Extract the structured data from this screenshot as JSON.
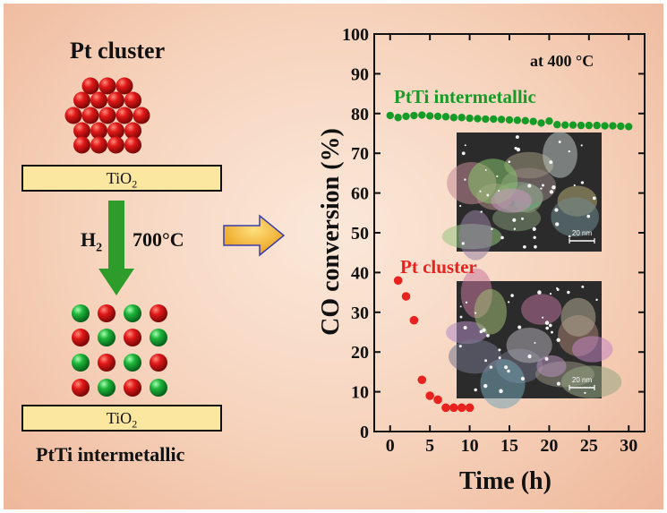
{
  "left_panel": {
    "title_top": "Pt cluster",
    "substrate_label": "TiO",
    "substrate_subscript": "2",
    "reaction_gas": "H",
    "reaction_gas_subscript": "2",
    "reaction_temperature": "700°C",
    "title_bottom": "PtTi intermetallic",
    "colors": {
      "pt_atom": "#d41515",
      "ti_atom": "#16a02c",
      "arrow_down": "#2e9c2a",
      "arrow_right": "#f5b21a",
      "substrate": "#fbe7a0"
    }
  },
  "chart_data": {
    "type": "scatter",
    "ylabel": "CO conversion (%)",
    "xlabel": "Time (h)",
    "annotation": "at 400 °C",
    "xlim": [
      -2,
      32
    ],
    "ylim": [
      0,
      100
    ],
    "x_ticks": [
      0,
      5,
      10,
      15,
      20,
      25,
      30
    ],
    "y_ticks": [
      0,
      10,
      20,
      30,
      40,
      50,
      60,
      70,
      80,
      90,
      100
    ],
    "series": [
      {
        "name": "PtTi intermetallic",
        "color": "#169b27",
        "points": [
          [
            0,
            79.5
          ],
          [
            1,
            79
          ],
          [
            2,
            79.3
          ],
          [
            3,
            79.5
          ],
          [
            4,
            79.6
          ],
          [
            5,
            79.4
          ],
          [
            6,
            79.3
          ],
          [
            7,
            79.2
          ],
          [
            8,
            79
          ],
          [
            9,
            79
          ],
          [
            10,
            78.8
          ],
          [
            11,
            78.7
          ],
          [
            12,
            78.6
          ],
          [
            13,
            78.6
          ],
          [
            14,
            78.5
          ],
          [
            15,
            78.4
          ],
          [
            16,
            78.3
          ],
          [
            17,
            78.2
          ],
          [
            18,
            78
          ],
          [
            19,
            77.6
          ],
          [
            20,
            78.1
          ],
          [
            21,
            77.2
          ],
          [
            22,
            77.1
          ],
          [
            23,
            77.1
          ],
          [
            24,
            77
          ],
          [
            25,
            77
          ],
          [
            26,
            77
          ],
          [
            27,
            76.9
          ],
          [
            28,
            76.9
          ],
          [
            29,
            76.8
          ],
          [
            30,
            76.7
          ]
        ]
      },
      {
        "name": "Pt cluster",
        "color": "#e8231f",
        "points": [
          [
            1,
            38
          ],
          [
            2,
            34
          ],
          [
            3,
            28
          ],
          [
            4,
            13
          ],
          [
            5,
            9
          ],
          [
            6,
            8
          ],
          [
            7,
            6
          ],
          [
            8,
            6
          ],
          [
            9,
            6
          ],
          [
            10,
            6
          ]
        ]
      }
    ],
    "inset_scale_bars": [
      "20 nm",
      "20 nm"
    ]
  }
}
